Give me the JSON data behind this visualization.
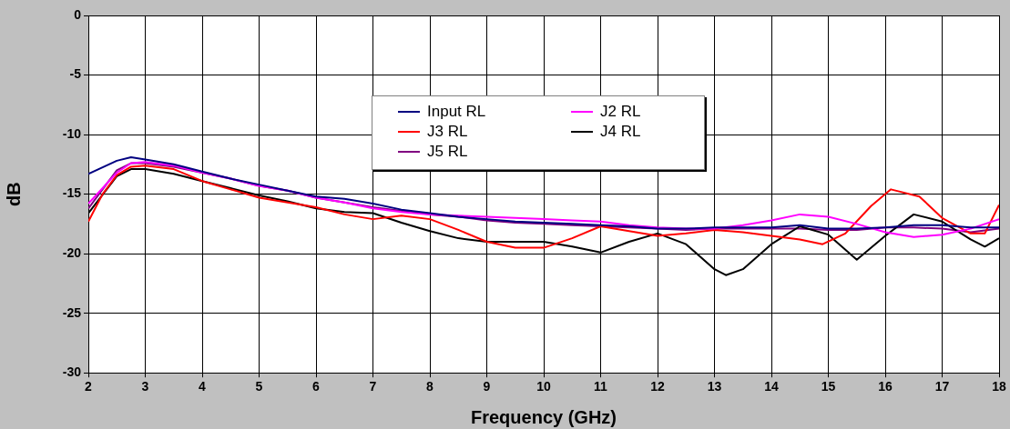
{
  "chart_data": {
    "type": "line",
    "xlabel": "Frequency (GHz)",
    "ylabel": "dB",
    "xlim": [
      2,
      18
    ],
    "xticks": [
      2,
      3,
      4,
      5,
      6,
      7,
      8,
      9,
      10,
      11,
      12,
      13,
      14,
      15,
      16,
      17,
      18
    ],
    "ylim": [
      -30,
      0
    ],
    "yticks": [
      -30,
      -25,
      -20,
      -15,
      -10,
      -5,
      0
    ],
    "grid": true,
    "legend": "top",
    "marker": "none",
    "line_style": "solid",
    "series": [
      {
        "name": "Input RL",
        "color": "#000080",
        "x": [
          2,
          2.5,
          2.75,
          3,
          3.5,
          4,
          4.5,
          5,
          5.5,
          6,
          6.5,
          7,
          7.5,
          8,
          8.5,
          9,
          9.5,
          10,
          10.5,
          11,
          11.5,
          12,
          12.5,
          13,
          13.5,
          14,
          14.5,
          15,
          15.5,
          16,
          16.5,
          17,
          17.5,
          18
        ],
        "values": [
          -13.3,
          -12.2,
          -11.9,
          -12.1,
          -12.5,
          -13.1,
          -13.7,
          -14.2,
          -14.7,
          -15.2,
          -15.4,
          -15.8,
          -16.3,
          -16.6,
          -16.9,
          -17.1,
          -17.3,
          -17.4,
          -17.5,
          -17.6,
          -17.7,
          -17.9,
          -17.9,
          -17.8,
          -17.8,
          -17.8,
          -17.6,
          -17.9,
          -17.9,
          -17.8,
          -17.6,
          -17.6,
          -17.8,
          -17.8
        ]
      },
      {
        "name": "J2 RL",
        "color": "#ff00ff",
        "x": [
          2,
          2.5,
          2.75,
          3,
          3.5,
          4,
          4.5,
          5,
          5.5,
          6,
          6.5,
          7,
          7.5,
          8,
          8.5,
          9,
          9.5,
          10,
          10.5,
          11,
          11.5,
          12,
          12.5,
          13,
          13.5,
          14,
          14.5,
          15,
          15.5,
          16,
          16.5,
          17,
          17.5,
          18
        ],
        "values": [
          -15.8,
          -13.2,
          -12.4,
          -12.3,
          -12.6,
          -13.2,
          -13.7,
          -14.3,
          -14.7,
          -15.3,
          -15.7,
          -16.2,
          -16.5,
          -16.7,
          -16.8,
          -16.9,
          -17.0,
          -17.1,
          -17.2,
          -17.3,
          -17.6,
          -17.8,
          -17.9,
          -17.9,
          -17.6,
          -17.2,
          -16.7,
          -16.9,
          -17.5,
          -18.2,
          -18.6,
          -18.4,
          -17.9,
          -17.1
        ]
      },
      {
        "name": "J3 RL",
        "color": "#ff0000",
        "x": [
          2,
          2.25,
          2.5,
          2.75,
          3,
          3.5,
          4,
          4.5,
          5,
          5.5,
          6,
          6.5,
          7,
          7.5,
          8,
          8.5,
          9,
          9.5,
          10,
          10.5,
          11,
          11.5,
          12,
          12.5,
          13,
          13.5,
          14,
          14.5,
          14.9,
          15.3,
          15.75,
          16.1,
          16.6,
          17,
          17.5,
          17.75,
          18
        ],
        "values": [
          -17.3,
          -15.0,
          -13.4,
          -12.7,
          -12.6,
          -12.9,
          -13.9,
          -14.6,
          -15.3,
          -15.7,
          -16.1,
          -16.7,
          -17.1,
          -16.8,
          -17.1,
          -18.0,
          -19.0,
          -19.5,
          -19.5,
          -18.7,
          -17.7,
          -18.1,
          -18.5,
          -18.3,
          -18.0,
          -18.2,
          -18.5,
          -18.8,
          -19.2,
          -18.3,
          -16.0,
          -14.6,
          -15.2,
          -17.0,
          -18.3,
          -18.3,
          -15.9
        ]
      },
      {
        "name": "J4 RL",
        "color": "#000000",
        "x": [
          2,
          2.5,
          2.75,
          3,
          3.5,
          4,
          4.5,
          5,
          5.5,
          6,
          6.5,
          7,
          7.5,
          8,
          8.5,
          9,
          9.5,
          10,
          10.5,
          11,
          11.5,
          12,
          12.5,
          13,
          13.2,
          13.5,
          14,
          14.5,
          15,
          15.5,
          16,
          16.5,
          17,
          17.5,
          17.75,
          18
        ],
        "values": [
          -16.6,
          -13.5,
          -12.9,
          -12.9,
          -13.3,
          -13.9,
          -14.5,
          -15.1,
          -15.6,
          -16.2,
          -16.5,
          -16.6,
          -17.4,
          -18.1,
          -18.7,
          -19.0,
          -19.0,
          -19.0,
          -19.4,
          -19.9,
          -19.0,
          -18.3,
          -19.2,
          -21.3,
          -21.8,
          -21.3,
          -19.2,
          -17.7,
          -18.4,
          -20.5,
          -18.5,
          -16.7,
          -17.3,
          -18.8,
          -19.4,
          -18.7
        ]
      },
      {
        "name": "J5 RL",
        "color": "#800080",
        "x": [
          2,
          2.5,
          2.75,
          3,
          3.5,
          4,
          4.5,
          5,
          5.5,
          6,
          6.5,
          7,
          7.5,
          8,
          8.5,
          9,
          9.5,
          10,
          10.5,
          11,
          11.5,
          12,
          12.5,
          13,
          13.5,
          14,
          14.5,
          15,
          15.5,
          16,
          16.5,
          17,
          17.5,
          18
        ],
        "values": [
          -16.2,
          -13.0,
          -12.4,
          -12.4,
          -12.7,
          -13.2,
          -13.7,
          -14.3,
          -14.7,
          -15.3,
          -15.7,
          -16.1,
          -16.4,
          -16.7,
          -16.9,
          -17.2,
          -17.4,
          -17.5,
          -17.6,
          -17.7,
          -17.8,
          -17.9,
          -18.0,
          -17.9,
          -17.9,
          -17.9,
          -17.9,
          -18.0,
          -18.0,
          -17.8,
          -17.8,
          -17.9,
          -18.2,
          -17.9
        ]
      }
    ]
  }
}
